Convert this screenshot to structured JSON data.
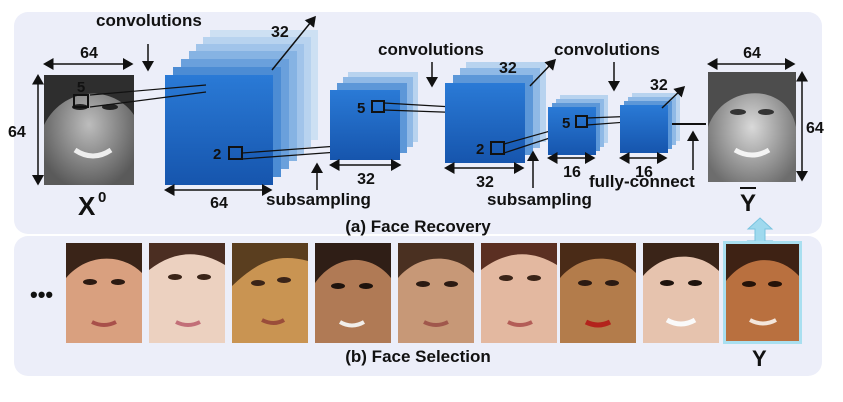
{
  "panels": {
    "recovery_caption": "(a) Face Recovery",
    "selection_caption": "(b) Face Selection"
  },
  "labels": {
    "conv1": "convolutions",
    "conv2": "convolutions",
    "conv3": "convolutions",
    "subsampling1": "subsampling",
    "subsampling2": "subsampling",
    "fully_connect": "fully-connect",
    "input_symbol": "X",
    "input_superscript": "0",
    "output_symbol": "Y",
    "target_symbol": "Y",
    "ellipsis": "•••"
  },
  "dims": {
    "input_width": "64",
    "input_height": "64",
    "input_kernel": "5",
    "layer1_depth": "32",
    "layer1_width": "64",
    "layer1_kernel": "2",
    "layer2_kernel": "5",
    "layer2_width": "32",
    "layer3_depth": "32",
    "layer3_kernel": "2",
    "layer3_width": "32",
    "layer4_kernel": "5",
    "layer4_width": "16",
    "layer5_depth": "32",
    "layer5_width": "16",
    "output_width": "64",
    "output_height": "64"
  },
  "colors": {
    "panel_bg": "#eceef9",
    "block_dark": "#1b63bf",
    "block_light": "#a9cbec",
    "arrow_fill": "#9fd9ee"
  },
  "selection_faces": [
    {
      "name": "face-1"
    },
    {
      "name": "face-2"
    },
    {
      "name": "face-3"
    },
    {
      "name": "face-4"
    },
    {
      "name": "face-5"
    },
    {
      "name": "face-6"
    },
    {
      "name": "face-7"
    },
    {
      "name": "face-8"
    },
    {
      "name": "face-9-target"
    }
  ]
}
